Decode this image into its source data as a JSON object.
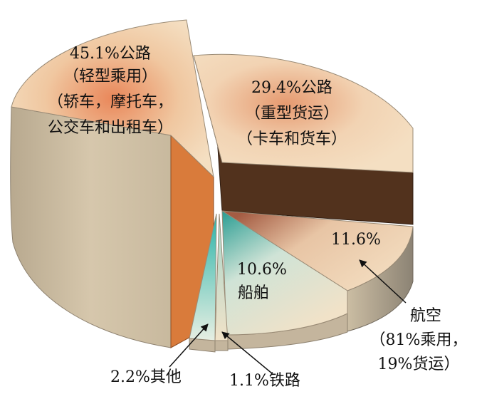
{
  "chart_data": {
    "type": "pie",
    "title": "",
    "slices": [
      {
        "value": 45.1,
        "color": "#f3dcbc",
        "side_color": "#c4b59d",
        "lines": [
          "45.1%公路",
          "（轻型乘用）",
          "（轿车，摩托车，",
          "公交车和出租车）"
        ]
      },
      {
        "value": 29.4,
        "color": "#f3dcbc",
        "side_color": "#c4b59d",
        "lines": [
          "29.4%公路",
          "（重型货运）",
          "（卡车和货车）"
        ]
      },
      {
        "value": 11.6,
        "color": "#f3dcbc",
        "side_color": "#b7ab96",
        "lines": [
          "11.6%"
        ]
      },
      {
        "value": 10.6,
        "color": "#f1e2c8",
        "side_color": "#c4b59d",
        "lines": [
          "10.6%",
          "船舶"
        ]
      },
      {
        "value": 1.1,
        "color": "#f3dcbc",
        "side_color": "#c4b59d",
        "lines": [
          "1.1%铁路"
        ]
      },
      {
        "value": 2.2,
        "color": "#cfe8dc",
        "side_color": "#c4b59d",
        "lines": [
          "2.2%其他"
        ]
      }
    ],
    "annotations": [
      {
        "slice": 2,
        "lines": [
          "航空",
          "（81%乘用，",
          "19%货运）"
        ]
      }
    ],
    "wall_color": "#52321d",
    "cut_color": "#d97b3b"
  }
}
